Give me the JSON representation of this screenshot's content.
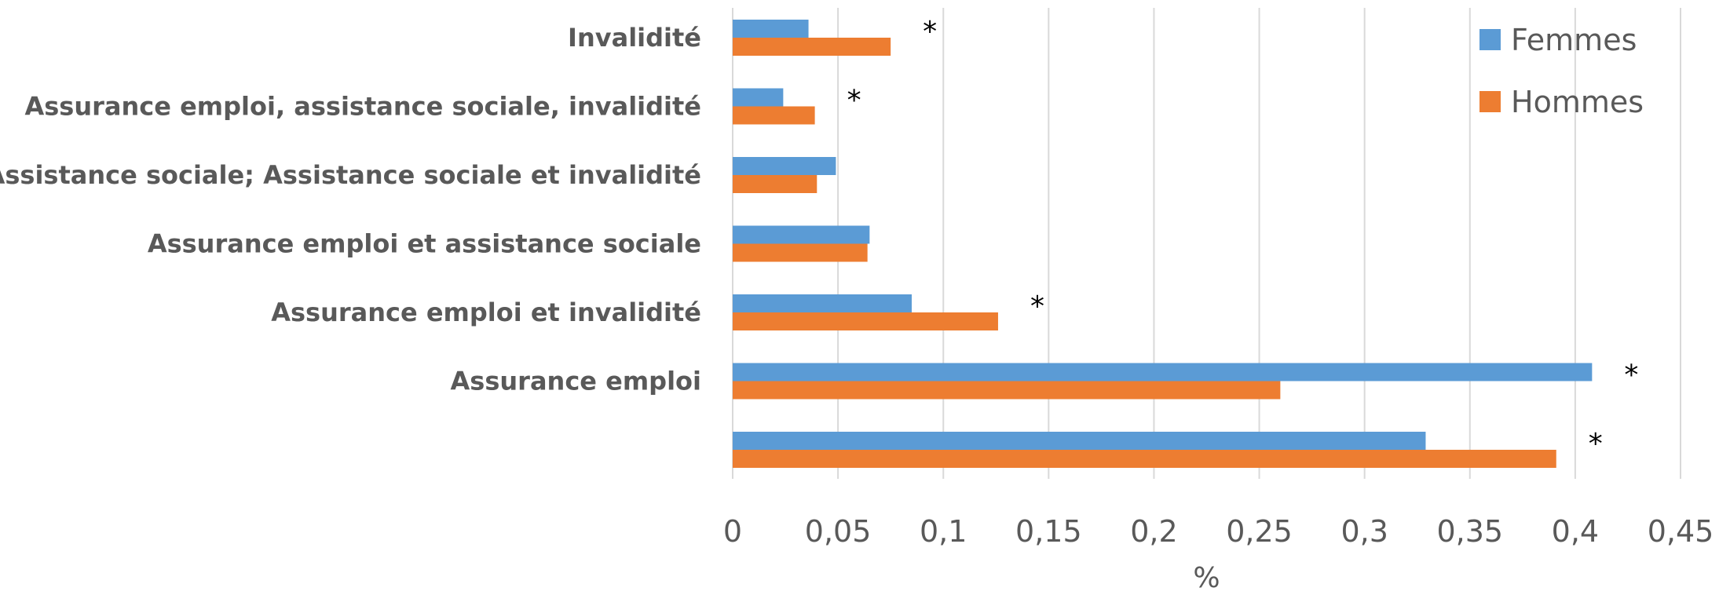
{
  "chart_data": {
    "type": "bar",
    "orientation": "horizontal",
    "categories": [
      "Invalidité",
      "Assurance emploi, assistance sociale, invalidité",
      "Assistance sociale; Assistance sociale et invalidité",
      "Assurance emploi et assistance sociale",
      "Assurance emploi et invalidité",
      "Assurance emploi",
      ""
    ],
    "series": [
      {
        "name": "Femmes",
        "color": "#5b9bd5",
        "values": [
          0.036,
          0.024,
          0.049,
          0.065,
          0.085,
          0.408,
          0.329
        ]
      },
      {
        "name": "Hommes",
        "color": "#ed7d31",
        "values": [
          0.075,
          0.039,
          0.04,
          0.064,
          0.126,
          0.26,
          0.391
        ]
      }
    ],
    "significance": [
      true,
      true,
      false,
      false,
      true,
      true,
      true
    ],
    "significance_marker": "*",
    "xlim": [
      0,
      0.45
    ],
    "xticks": [
      0,
      0.05,
      0.1,
      0.15,
      0.2,
      0.25,
      0.3,
      0.35,
      0.4,
      0.45
    ],
    "xtick_labels": [
      "0",
      "0,05",
      "0,1",
      "0,15",
      "0,2",
      "0,25",
      "0,3",
      "0,35",
      "0,4",
      "0,45"
    ],
    "xlabel": "%",
    "ylabel": "",
    "title": "",
    "grid": "vertical",
    "legend_position": "top-right"
  }
}
